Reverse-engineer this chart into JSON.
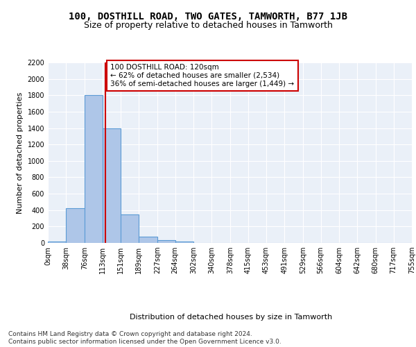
{
  "title_line1": "100, DOSTHILL ROAD, TWO GATES, TAMWORTH, B77 1JB",
  "title_line2": "Size of property relative to detached houses in Tamworth",
  "xlabel": "Distribution of detached houses by size in Tamworth",
  "ylabel": "Number of detached properties",
  "bar_color": "#aec6e8",
  "bar_edge_color": "#5b9bd5",
  "background_color": "#eaf0f8",
  "grid_color": "#ffffff",
  "annotation_text": "100 DOSTHILL ROAD: 120sqm\n← 62% of detached houses are smaller (2,534)\n36% of semi-detached houses are larger (1,449) →",
  "vline_x": 120,
  "vline_color": "#cc0000",
  "annotation_box_color": "#ffffff",
  "annotation_box_edgecolor": "#cc0000",
  "bins": [
    0,
    38,
    76,
    113,
    151,
    189,
    227,
    264,
    302,
    340,
    378,
    415,
    453,
    491,
    529,
    566,
    604,
    642,
    680,
    717,
    755
  ],
  "bar_heights": [
    20,
    420,
    1800,
    1400,
    350,
    80,
    35,
    20,
    0,
    0,
    0,
    0,
    0,
    0,
    0,
    0,
    0,
    0,
    0,
    0
  ],
  "ylim": [
    0,
    2200
  ],
  "yticks": [
    0,
    200,
    400,
    600,
    800,
    1000,
    1200,
    1400,
    1600,
    1800,
    2000,
    2200
  ],
  "tick_labels": [
    "0sqm",
    "38sqm",
    "76sqm",
    "113sqm",
    "151sqm",
    "189sqm",
    "227sqm",
    "264sqm",
    "302sqm",
    "340sqm",
    "378sqm",
    "415sqm",
    "453sqm",
    "491sqm",
    "529sqm",
    "566sqm",
    "604sqm",
    "642sqm",
    "680sqm",
    "717sqm",
    "755sqm"
  ],
  "footer_text": "Contains HM Land Registry data © Crown copyright and database right 2024.\nContains public sector information licensed under the Open Government Licence v3.0.",
  "title_fontsize": 10,
  "subtitle_fontsize": 9,
  "axis_label_fontsize": 8,
  "tick_fontsize": 7,
  "annotation_fontsize": 7.5,
  "footer_fontsize": 6.5
}
